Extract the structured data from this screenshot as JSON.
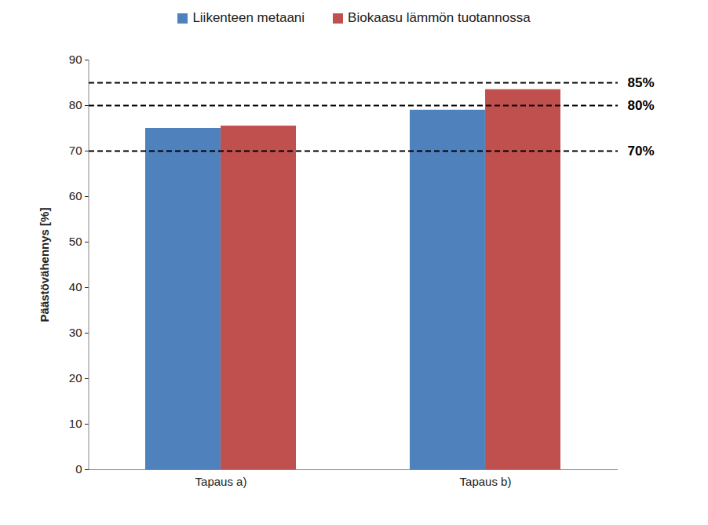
{
  "chart_data": {
    "type": "bar",
    "categories": [
      "Tapaus a)",
      "Tapaus b)"
    ],
    "series": [
      {
        "name": "Liikenteen metaani",
        "color": "#4f81bd",
        "values": [
          75,
          79
        ]
      },
      {
        "name": "Biokaasu lämmön tuotannossa",
        "color": "#c0504d",
        "values": [
          75.5,
          83.5
        ]
      }
    ],
    "y_label": "Päästövähennys [%]",
    "ylim": [
      0,
      90
    ],
    "yticks": [
      0,
      10,
      20,
      30,
      40,
      50,
      60,
      70,
      80,
      90
    ],
    "grid": false,
    "legend": "top",
    "annotations": [
      {
        "y": 85,
        "text": "85%"
      },
      {
        "y": 80,
        "text": "80%"
      },
      {
        "y": 70,
        "text": "70%"
      }
    ]
  }
}
